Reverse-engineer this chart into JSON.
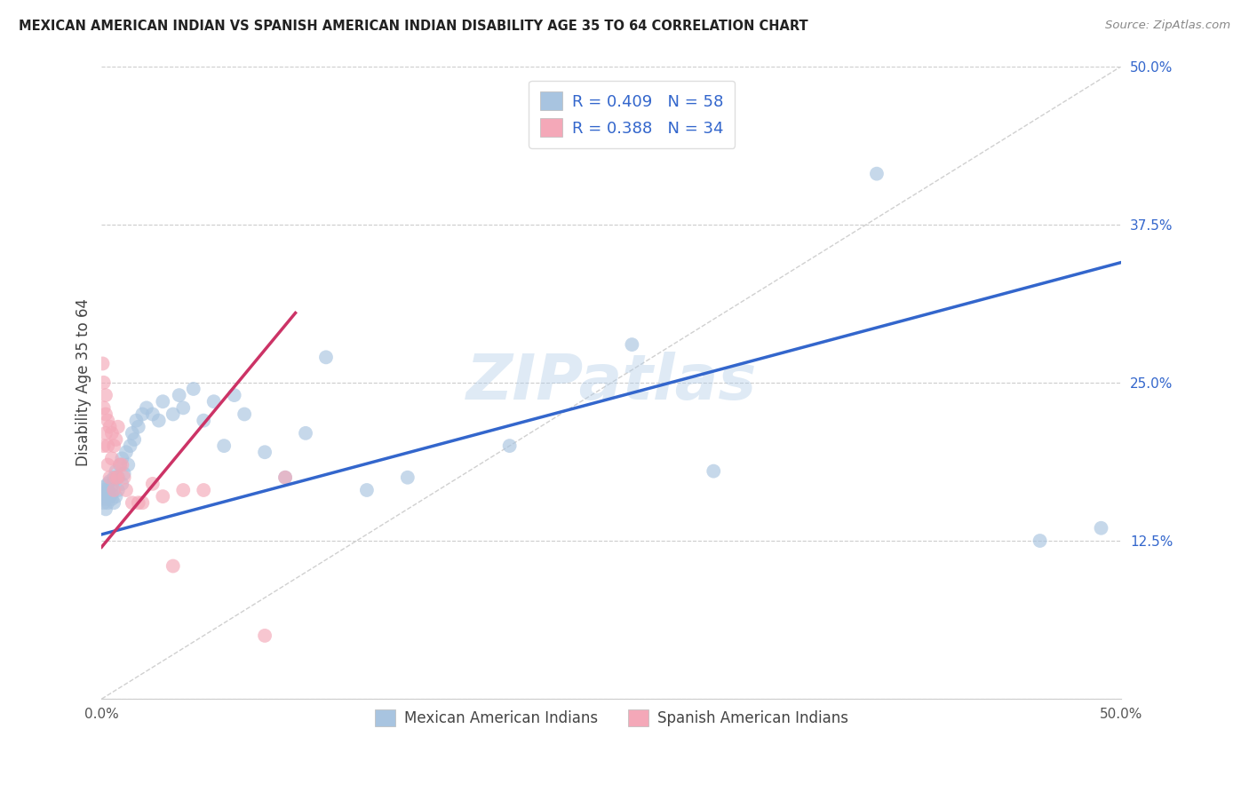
{
  "title": "MEXICAN AMERICAN INDIAN VS SPANISH AMERICAN INDIAN DISABILITY AGE 35 TO 64 CORRELATION CHART",
  "source": "Source: ZipAtlas.com",
  "ylabel": "Disability Age 35 to 64",
  "xmin": 0.0,
  "xmax": 0.5,
  "ymin": 0.0,
  "ymax": 0.5,
  "blue_R": 0.409,
  "blue_N": 58,
  "pink_R": 0.388,
  "pink_N": 34,
  "blue_color": "#a8c4e0",
  "pink_color": "#f4a8b8",
  "blue_line_color": "#3366cc",
  "pink_line_color": "#cc3366",
  "diagonal_color": "#cccccc",
  "watermark_color": "#b0cce8",
  "ytick_positions": [
    0.0,
    0.125,
    0.25,
    0.375,
    0.5
  ],
  "blue_scatter_x": [
    0.001,
    0.001,
    0.001,
    0.002,
    0.002,
    0.002,
    0.002,
    0.003,
    0.003,
    0.003,
    0.004,
    0.004,
    0.005,
    0.005,
    0.005,
    0.006,
    0.006,
    0.007,
    0.007,
    0.008,
    0.008,
    0.009,
    0.01,
    0.01,
    0.011,
    0.012,
    0.013,
    0.014,
    0.015,
    0.016,
    0.017,
    0.018,
    0.02,
    0.022,
    0.025,
    0.028,
    0.03,
    0.035,
    0.038,
    0.04,
    0.045,
    0.05,
    0.055,
    0.06,
    0.065,
    0.07,
    0.08,
    0.09,
    0.1,
    0.11,
    0.13,
    0.15,
    0.2,
    0.26,
    0.3,
    0.38,
    0.46,
    0.49
  ],
  "blue_scatter_y": [
    0.155,
    0.16,
    0.165,
    0.15,
    0.158,
    0.162,
    0.168,
    0.155,
    0.165,
    0.17,
    0.16,
    0.172,
    0.158,
    0.162,
    0.168,
    0.155,
    0.175,
    0.16,
    0.18,
    0.165,
    0.175,
    0.185,
    0.17,
    0.19,
    0.178,
    0.195,
    0.185,
    0.2,
    0.21,
    0.205,
    0.22,
    0.215,
    0.225,
    0.23,
    0.225,
    0.22,
    0.235,
    0.225,
    0.24,
    0.23,
    0.245,
    0.22,
    0.235,
    0.2,
    0.24,
    0.225,
    0.195,
    0.175,
    0.21,
    0.27,
    0.165,
    0.175,
    0.2,
    0.28,
    0.18,
    0.415,
    0.125,
    0.135
  ],
  "pink_scatter_x": [
    0.0005,
    0.001,
    0.001,
    0.001,
    0.002,
    0.002,
    0.002,
    0.003,
    0.003,
    0.003,
    0.004,
    0.004,
    0.005,
    0.005,
    0.006,
    0.006,
    0.007,
    0.007,
    0.008,
    0.008,
    0.009,
    0.01,
    0.011,
    0.012,
    0.015,
    0.018,
    0.02,
    0.025,
    0.03,
    0.035,
    0.04,
    0.05,
    0.08,
    0.09
  ],
  "pink_scatter_y": [
    0.265,
    0.25,
    0.23,
    0.2,
    0.24,
    0.225,
    0.21,
    0.22,
    0.2,
    0.185,
    0.215,
    0.175,
    0.21,
    0.19,
    0.2,
    0.165,
    0.205,
    0.175,
    0.215,
    0.175,
    0.185,
    0.185,
    0.175,
    0.165,
    0.155,
    0.155,
    0.155,
    0.17,
    0.16,
    0.105,
    0.165,
    0.165,
    0.05,
    0.175
  ],
  "blue_line_x0": 0.0,
  "blue_line_y0": 0.13,
  "blue_line_x1": 0.5,
  "blue_line_y1": 0.345,
  "pink_line_x0": 0.0,
  "pink_line_y0": 0.12,
  "pink_line_x1": 0.095,
  "pink_line_y1": 0.305
}
